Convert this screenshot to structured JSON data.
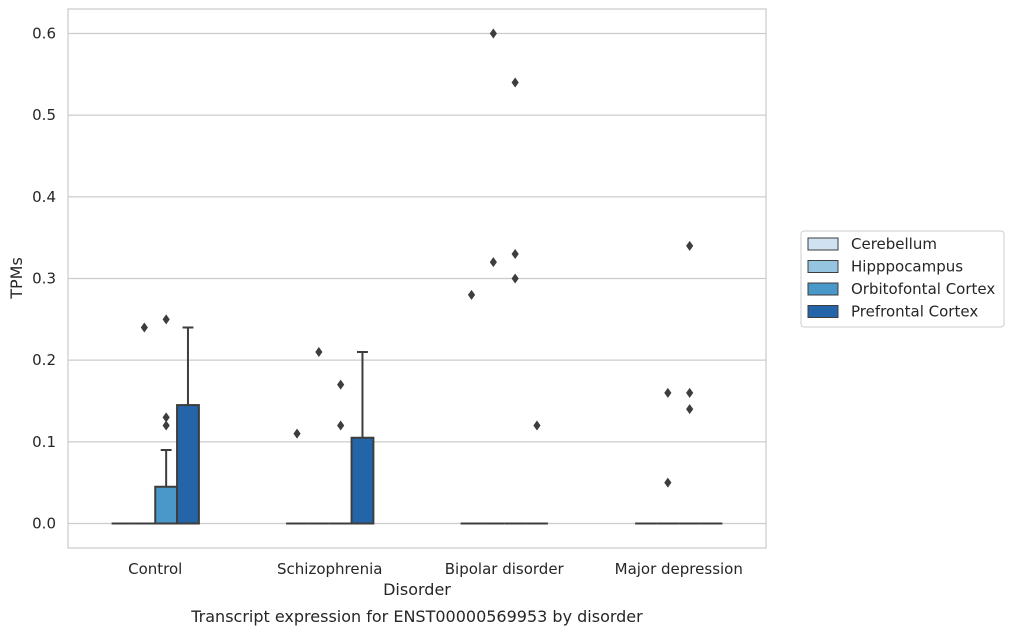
{
  "chart_data": {
    "type": "box",
    "title": "Transcript expression for ENST00000569953 by disorder",
    "xlabel": "Disorder",
    "ylabel": "TPMs",
    "ylim": [
      -0.03,
      0.63
    ],
    "yticks": [
      "0.0",
      "0.1",
      "0.2",
      "0.3",
      "0.4",
      "0.5",
      "0.6"
    ],
    "grid": true,
    "legend_position": "right",
    "categories": [
      "Control",
      "Schizophrenia",
      "Bipolar disorder",
      "Major depression"
    ],
    "series": [
      {
        "name": "Cerebellum",
        "color": "#d0e1f2",
        "boxes": [
          {
            "q1": 0,
            "median": 0,
            "q3": 0,
            "whisker_low": 0,
            "whisker_high": 0,
            "outliers": []
          },
          {
            "q1": 0,
            "median": 0,
            "q3": 0,
            "whisker_low": 0,
            "whisker_high": 0,
            "outliers": [
              0.11
            ]
          },
          {
            "q1": 0,
            "median": 0,
            "q3": 0,
            "whisker_low": 0,
            "whisker_high": 0,
            "outliers": [
              0.28
            ]
          },
          {
            "q1": 0,
            "median": 0,
            "q3": 0,
            "whisker_low": 0,
            "whisker_high": 0,
            "outliers": []
          }
        ]
      },
      {
        "name": "Hipppocampus",
        "color": "#94c4df",
        "boxes": [
          {
            "q1": 0,
            "median": 0,
            "q3": 0,
            "whisker_low": 0,
            "whisker_high": 0,
            "outliers": [
              0.24
            ]
          },
          {
            "q1": 0,
            "median": 0,
            "q3": 0,
            "whisker_low": 0,
            "whisker_high": 0,
            "outliers": [
              0.21
            ]
          },
          {
            "q1": 0,
            "median": 0,
            "q3": 0,
            "whisker_low": 0,
            "whisker_high": 0,
            "outliers": [
              0.32,
              0.6
            ]
          },
          {
            "q1": 0,
            "median": 0,
            "q3": 0,
            "whisker_low": 0,
            "whisker_high": 0,
            "outliers": [
              0.16,
              0.05
            ]
          }
        ]
      },
      {
        "name": "Orbitofontal Cortex",
        "color": "#4a98c9",
        "boxes": [
          {
            "q1": 0,
            "median": 0,
            "q3": 0.045,
            "whisker_low": 0,
            "whisker_high": 0.09,
            "outliers": [
              0.25,
              0.13,
              0.12
            ]
          },
          {
            "q1": 0,
            "median": 0,
            "q3": 0,
            "whisker_low": 0,
            "whisker_high": 0,
            "outliers": [
              0.17,
              0.12
            ]
          },
          {
            "q1": 0,
            "median": 0,
            "q3": 0,
            "whisker_low": 0,
            "whisker_high": 0,
            "outliers": [
              0.54,
              0.33,
              0.3
            ]
          },
          {
            "q1": 0,
            "median": 0,
            "q3": 0,
            "whisker_low": 0,
            "whisker_high": 0,
            "outliers": [
              0.34,
              0.16,
              0.14
            ]
          }
        ]
      },
      {
        "name": "Prefrontal Cortex",
        "color": "#2365a8",
        "boxes": [
          {
            "q1": 0,
            "median": 0,
            "q3": 0.145,
            "whisker_low": 0,
            "whisker_high": 0.24,
            "outliers": []
          },
          {
            "q1": 0,
            "median": 0,
            "q3": 0.105,
            "whisker_low": 0,
            "whisker_high": 0.21,
            "outliers": []
          },
          {
            "q1": 0,
            "median": 0,
            "q3": 0,
            "whisker_low": 0,
            "whisker_high": 0,
            "outliers": [
              0.12
            ]
          },
          {
            "q1": 0,
            "median": 0,
            "q3": 0,
            "whisker_low": 0,
            "whisker_high": 0,
            "outliers": []
          }
        ]
      }
    ],
    "colors": {
      "grid": "#cccccc",
      "frame": "#cccccc",
      "box_edge": "#3d3d3d",
      "outlier": "#3d3d3d"
    }
  }
}
